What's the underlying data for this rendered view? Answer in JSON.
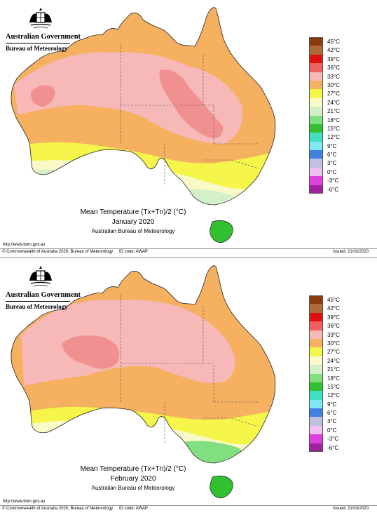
{
  "logo": {
    "government": "Australian Government",
    "bureau": "Bureau of Meteorology"
  },
  "legend": [
    {
      "label": "45°C",
      "color": "#8b3a0e"
    },
    {
      "label": "42°C",
      "color": "#b06a3a"
    },
    {
      "label": "39°C",
      "color": "#e01010"
    },
    {
      "label": "36°C",
      "color": "#f06060"
    },
    {
      "label": "33°C",
      "color": "#f7b8b8"
    },
    {
      "label": "30°C",
      "color": "#f5b060"
    },
    {
      "label": "27°C",
      "color": "#f5f54a"
    },
    {
      "label": "24°C",
      "color": "#fafac8"
    },
    {
      "label": "21°C",
      "color": "#d4f0c8"
    },
    {
      "label": "18°C",
      "color": "#80e080"
    },
    {
      "label": "15°C",
      "color": "#30c030"
    },
    {
      "label": "12°C",
      "color": "#40e0c0"
    },
    {
      "label": "9°C",
      "color": "#80e8f5"
    },
    {
      "label": "6°C",
      "color": "#4080e0"
    },
    {
      "label": "3°C",
      "color": "#c0c0e0"
    },
    {
      "label": "0°C",
      "color": "#f0c0f0"
    },
    {
      "label": "-3°C",
      "color": "#e040e0"
    },
    {
      "label": "-6°C",
      "color": "#a020a0"
    }
  ],
  "maps": [
    {
      "title": "Mean Temperature (Tx+Tn)/2 (°C)",
      "month": "January 2020",
      "source": "Australian Bureau of Meteorology",
      "url": "http://www.bom.gov.au",
      "copyright": "© Commonwealth of Australia 2020, Bureau of Meteorology",
      "id_code": "ID code: AWAP",
      "issued": "Issued: 21/02/2020",
      "colors": {
        "north": "#f5b060",
        "interior": "#f7b8b8",
        "hot": "#f09090",
        "band_mid": "#f5b060",
        "band_south": "#f5f54a",
        "south_coast": "#fafac8",
        "sw_tip": "#d4f0c8",
        "se_coast": "#d4f0c8",
        "tasmania": "#30c030"
      }
    },
    {
      "title": "Mean Temperature (Tx+Tn)/2 (°C)",
      "month": "February 2020",
      "source": "Australian Bureau of Meteorology",
      "url": "http://www.bom.gov.au",
      "copyright": "© Commonwealth of Australia 2020, Bureau of Meteorology",
      "id_code": "ID code: AWAP",
      "issued": "Issued: 21/03/2020",
      "colors": {
        "north": "#f5b060",
        "interior": "#f7b8b8",
        "hot": "#f09090",
        "band_mid": "#f5b060",
        "band_south": "#f5f54a",
        "south_coast": "#fafac8",
        "sw_tip": "#fafac8",
        "se_coast": "#80e080",
        "tasmania": "#30c030"
      }
    }
  ]
}
